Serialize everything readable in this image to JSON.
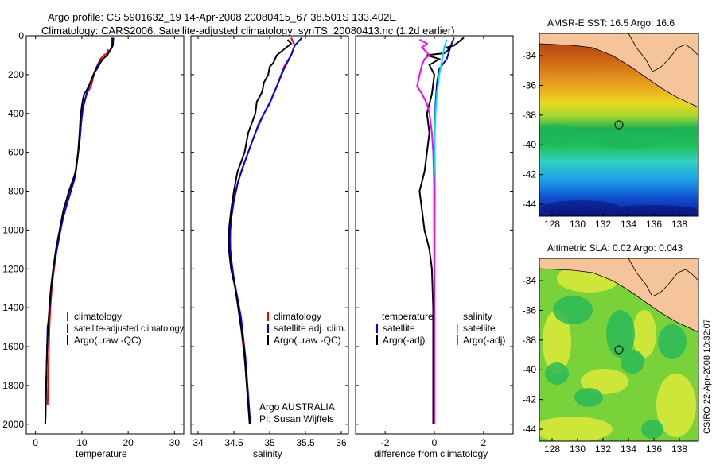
{
  "title_line1": "Argo profile: CS 5901632_19 14-Apr-2008 20080415_67 38.501S 133.402E",
  "title_line2": "Climatology: CARS2006. Satellite-adjusted climatology: synTS_20080413.nc (1.2d earlier)",
  "side_label": "CSIRO 22-Apr-2008 10:32:07",
  "colors": {
    "clim": "#ff0000",
    "sat": "#0000ff",
    "argo": "#000000",
    "sat_diff": "#00e5ee",
    "argo_adj": "#ff00ff"
  },
  "chart_data": [
    {
      "type": "line",
      "xlabel": "temperature",
      "ylim": [
        2050,
        0
      ],
      "xlim": [
        -2,
        32
      ],
      "xticks": [
        "0",
        "10",
        "20",
        "30"
      ],
      "yticks": [
        "0",
        "200",
        "400",
        "600",
        "800",
        "1000",
        "1200",
        "1400",
        "1600",
        "1800",
        "2000"
      ],
      "legend": [
        "climatology",
        "satellite-adjusted climatology",
        "Argo(..raw -QC)"
      ],
      "series": [
        {
          "name": "climatology",
          "color": "red",
          "points": [
            [
              15.7,
              70
            ],
            [
              15.5,
              90
            ],
            [
              14.8,
              100
            ],
            [
              14.0,
              120
            ],
            [
              13.2,
              160
            ],
            [
              12.6,
              200
            ],
            [
              12.0,
              260
            ],
            [
              11.0,
              300
            ],
            [
              10.4,
              350
            ],
            [
              10.0,
              400
            ],
            [
              9.7,
              500
            ],
            [
              9.2,
              600
            ],
            [
              8.6,
              700
            ],
            [
              7.5,
              800
            ],
            [
              6.3,
              900
            ],
            [
              5.4,
              1000
            ],
            [
              4.6,
              1100
            ],
            [
              4.0,
              1200
            ],
            [
              3.5,
              1300
            ],
            [
              3.2,
              1400
            ],
            [
              3.0,
              1500
            ],
            [
              2.9,
              1600
            ],
            [
              2.8,
              1700
            ],
            [
              2.7,
              1800
            ],
            [
              2.6,
              1900
            ]
          ]
        },
        {
          "name": "satellite-adjusted climatology",
          "color": "blue",
          "points": [
            [
              16.5,
              10
            ],
            [
              16.4,
              60
            ],
            [
              15.5,
              100
            ],
            [
              14.0,
              130
            ],
            [
              13.0,
              170
            ],
            [
              12.2,
              220
            ],
            [
              11.4,
              270
            ],
            [
              10.8,
              320
            ],
            [
              10.2,
              380
            ],
            [
              9.8,
              460
            ],
            [
              9.5,
              550
            ],
            [
              9.0,
              640
            ],
            [
              8.4,
              740
            ],
            [
              7.0,
              850
            ],
            [
              5.8,
              950
            ],
            [
              5.0,
              1050
            ],
            [
              4.2,
              1150
            ],
            [
              3.6,
              1250
            ],
            [
              3.2,
              1350
            ],
            [
              2.9,
              1450
            ],
            [
              2.6,
              1500
            ],
            [
              2.5,
              1600
            ],
            [
              2.4,
              1700
            ],
            [
              2.3,
              1800
            ],
            [
              2.2,
              1900
            ],
            [
              2.1,
              2000
            ]
          ]
        },
        {
          "name": "Argo(..raw -QC)",
          "color": "black",
          "points": [
            [
              16.8,
              10
            ],
            [
              16.7,
              50
            ],
            [
              16.5,
              60
            ],
            [
              16.0,
              80
            ],
            [
              15.5,
              100
            ],
            [
              14.5,
              120
            ],
            [
              13.5,
              160
            ],
            [
              12.5,
              200
            ],
            [
              11.5,
              260
            ],
            [
              10.8,
              290
            ],
            [
              10.5,
              300
            ],
            [
              10.3,
              320
            ],
            [
              10.0,
              360
            ],
            [
              9.7,
              420
            ],
            [
              9.5,
              500
            ],
            [
              9.2,
              600
            ],
            [
              8.7,
              700
            ],
            [
              7.2,
              800
            ],
            [
              6.0,
              900
            ],
            [
              5.2,
              1000
            ],
            [
              4.4,
              1100
            ],
            [
              3.8,
              1200
            ],
            [
              3.3,
              1300
            ],
            [
              3.0,
              1400
            ],
            [
              2.7,
              1500
            ],
            [
              2.5,
              1600
            ],
            [
              2.4,
              1700
            ],
            [
              2.3,
              1800
            ],
            [
              2.2,
              1900
            ],
            [
              2.1,
              2000
            ]
          ]
        }
      ]
    },
    {
      "type": "line",
      "xlabel": "salinity",
      "ylim": [
        2050,
        0
      ],
      "xlim": [
        33.9,
        36.1
      ],
      "xticks": [
        "34",
        "34.5",
        "35",
        "35.5",
        "36"
      ],
      "legend": [
        "climatology",
        "satellite adj. clim.",
        "Argo(..raw -QC)"
      ],
      "annotations": [
        "Argo AUSTRALIA",
        "PI: Susan Wijffels"
      ],
      "series": [
        {
          "name": "climatology",
          "color": "red",
          "points": [
            [
              35.3,
              10
            ],
            [
              35.35,
              50
            ],
            [
              35.3,
              100
            ],
            [
              35.2,
              160
            ],
            [
              35.1,
              260
            ],
            [
              35.05,
              300
            ],
            [
              35.0,
              350
            ],
            [
              34.92,
              400
            ],
            [
              34.8,
              500
            ],
            [
              34.7,
              600
            ],
            [
              34.6,
              700
            ],
            [
              34.52,
              800
            ],
            [
              34.47,
              900
            ],
            [
              34.45,
              1000
            ],
            [
              34.45,
              1100
            ],
            [
              34.48,
              1200
            ],
            [
              34.52,
              1300
            ],
            [
              34.56,
              1400
            ],
            [
              34.6,
              1500
            ],
            [
              34.63,
              1600
            ],
            [
              34.66,
              1700
            ],
            [
              34.68,
              1800
            ],
            [
              34.7,
              1900
            ]
          ]
        },
        {
          "name": "satellite adj. clim.",
          "color": "blue",
          "points": [
            [
              35.45,
              10
            ],
            [
              35.35,
              50
            ],
            [
              35.3,
              100
            ],
            [
              35.2,
              170
            ],
            [
              35.1,
              260
            ],
            [
              35.02,
              330
            ],
            [
              34.95,
              380
            ],
            [
              34.85,
              450
            ],
            [
              34.75,
              550
            ],
            [
              34.65,
              650
            ],
            [
              34.56,
              750
            ],
            [
              34.5,
              850
            ],
            [
              34.46,
              950
            ],
            [
              34.44,
              1050
            ],
            [
              34.46,
              1150
            ],
            [
              34.5,
              1250
            ],
            [
              34.55,
              1350
            ],
            [
              34.6,
              1450
            ],
            [
              34.63,
              1550
            ],
            [
              34.66,
              1650
            ],
            [
              34.68,
              1750
            ],
            [
              34.7,
              1850
            ],
            [
              34.72,
              1950
            ],
            [
              34.73,
              2000
            ]
          ]
        },
        {
          "name": "Argo(..raw -QC)",
          "color": "black",
          "points": [
            [
              35.25,
              20
            ],
            [
              35.3,
              40
            ],
            [
              35.2,
              70
            ],
            [
              35.1,
              100
            ],
            [
              35.05,
              140
            ],
            [
              35.0,
              160
            ],
            [
              34.98,
              200
            ],
            [
              34.92,
              240
            ],
            [
              34.9,
              280
            ],
            [
              34.88,
              300
            ],
            [
              34.82,
              340
            ],
            [
              34.8,
              400
            ],
            [
              34.7,
              500
            ],
            [
              34.65,
              600
            ],
            [
              34.55,
              700
            ],
            [
              34.5,
              800
            ],
            [
              34.46,
              900
            ],
            [
              34.43,
              1000
            ],
            [
              34.43,
              1100
            ],
            [
              34.46,
              1200
            ],
            [
              34.52,
              1300
            ],
            [
              34.56,
              1400
            ],
            [
              34.6,
              1500
            ],
            [
              34.64,
              1600
            ],
            [
              34.66,
              1700
            ],
            [
              34.68,
              1800
            ],
            [
              34.7,
              1900
            ],
            [
              34.72,
              2000
            ]
          ]
        }
      ]
    },
    {
      "type": "line",
      "xlabel": "difference from climatology",
      "ylim": [
        2050,
        0
      ],
      "xlim": [
        -3.2,
        3.2
      ],
      "xticks": [
        "-2",
        "0",
        "2"
      ],
      "legend_left": [
        "temperature",
        "satellite",
        "Argo(-adj)"
      ],
      "legend_right": [
        "salinity",
        "satellite",
        "Argo(-adj)"
      ],
      "series": [
        {
          "name": "temp satellite",
          "color": "blue",
          "points": [
            [
              0.8,
              10
            ],
            [
              0.7,
              40
            ],
            [
              0.6,
              80
            ],
            [
              0.5,
              120
            ],
            [
              0.2,
              170
            ],
            [
              0.1,
              250
            ],
            [
              0.05,
              350
            ],
            [
              0.02,
              450
            ],
            [
              0.01,
              600
            ],
            [
              0.01,
              800
            ],
            [
              0.0,
              1200
            ],
            [
              0.0,
              2000
            ]
          ]
        },
        {
          "name": "temp Argo(-adj)",
          "color": "black",
          "points": [
            [
              1.2,
              10
            ],
            [
              1.0,
              30
            ],
            [
              0.8,
              50
            ],
            [
              0.5,
              60
            ],
            [
              0.6,
              70
            ],
            [
              0.4,
              90
            ],
            [
              -0.3,
              100
            ],
            [
              0.2,
              120
            ],
            [
              -0.2,
              150
            ],
            [
              0.0,
              200
            ],
            [
              -0.1,
              300
            ],
            [
              -0.2,
              350
            ],
            [
              -0.3,
              400
            ],
            [
              -0.2,
              500
            ],
            [
              -0.3,
              600
            ],
            [
              -0.4,
              700
            ],
            [
              -0.6,
              800
            ],
            [
              -0.5,
              900
            ],
            [
              -0.4,
              1000
            ],
            [
              -0.2,
              1100
            ],
            [
              -0.1,
              1200
            ],
            [
              -0.05,
              1400
            ],
            [
              -0.05,
              1600
            ],
            [
              -0.05,
              1800
            ],
            [
              -0.05,
              2000
            ]
          ]
        },
        {
          "name": "sal satellite",
          "color": "cyan",
          "points": [
            [
              0.5,
              20
            ],
            [
              0.4,
              60
            ],
            [
              0.35,
              100
            ],
            [
              0.2,
              200
            ],
            [
              0.1,
              300
            ],
            [
              0.05,
              400
            ],
            [
              0.02,
              500
            ],
            [
              0.0,
              700
            ],
            [
              -0.02,
              800
            ],
            [
              -0.02,
              1000
            ],
            [
              -0.01,
              1200
            ],
            [
              0.0,
              1400
            ],
            [
              0.0,
              2000
            ]
          ]
        },
        {
          "name": "sal Argo(-adj)",
          "color": "magenta",
          "points": [
            [
              -0.6,
              20
            ],
            [
              -0.3,
              40
            ],
            [
              -0.5,
              60
            ],
            [
              -0.2,
              100
            ],
            [
              -0.4,
              120
            ],
            [
              -0.5,
              150
            ],
            [
              -0.6,
              200
            ],
            [
              -0.7,
              260
            ],
            [
              -0.5,
              300
            ],
            [
              -0.3,
              350
            ],
            [
              -0.2,
              400
            ],
            [
              -0.1,
              500
            ],
            [
              -0.05,
              600
            ],
            [
              0.0,
              800
            ],
            [
              0.0,
              1000
            ],
            [
              0.0,
              2000
            ]
          ]
        }
      ]
    },
    {
      "type": "heatmap",
      "title": "AMSR-E SST: 16.5 Argo: 16.6",
      "xticks": [
        "128",
        "130",
        "132",
        "134",
        "136",
        "138"
      ],
      "yticks": [
        "-34",
        "-36",
        "-38",
        "-40",
        "-42",
        "-44"
      ],
      "xlim": [
        127,
        139.5
      ],
      "ylim": [
        -44.8,
        -32.5
      ],
      "marker": [
        133.4,
        -38.5
      ]
    },
    {
      "type": "heatmap",
      "title": "Altimetric SLA: 0.02 Argo: 0.043",
      "xticks": [
        "128",
        "130",
        "132",
        "134",
        "136",
        "138"
      ],
      "yticks": [
        "-34",
        "-36",
        "-38",
        "-40",
        "-42",
        "-44"
      ],
      "xlim": [
        127,
        139.5
      ],
      "ylim": [
        -44.8,
        -32.5
      ],
      "marker": [
        133.4,
        -38.5
      ]
    }
  ]
}
